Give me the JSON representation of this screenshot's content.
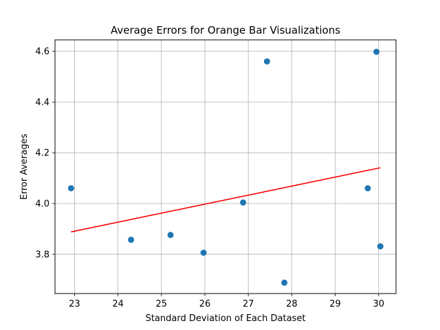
{
  "chart_data": {
    "type": "scatter",
    "title": "Average Errors for Orange Bar Visualizations",
    "xlabel": "Standard Deviation of Each Dataset",
    "ylabel": "Error Averages",
    "xlim": [
      22.55,
      30.4
    ],
    "ylim": [
      3.645,
      4.645
    ],
    "xticks": [
      23,
      24,
      25,
      26,
      27,
      28,
      29,
      30
    ],
    "yticks": [
      3.8,
      4.0,
      4.2,
      4.4,
      4.6
    ],
    "xtick_labels": [
      "23",
      "24",
      "25",
      "26",
      "27",
      "28",
      "29",
      "30"
    ],
    "ytick_labels": [
      "3.8",
      "4.0",
      "4.2",
      "4.4",
      "4.6"
    ],
    "grid": true,
    "points": [
      {
        "x": 22.92,
        "y": 4.06
      },
      {
        "x": 24.3,
        "y": 3.857
      },
      {
        "x": 25.21,
        "y": 3.876
      },
      {
        "x": 25.97,
        "y": 3.806
      },
      {
        "x": 26.88,
        "y": 4.004
      },
      {
        "x": 27.43,
        "y": 4.56
      },
      {
        "x": 27.83,
        "y": 3.688
      },
      {
        "x": 29.75,
        "y": 4.06
      },
      {
        "x": 29.95,
        "y": 4.598
      },
      {
        "x": 30.04,
        "y": 3.831
      }
    ],
    "trend_line": {
      "x": [
        22.92,
        30.04
      ],
      "y": [
        3.888,
        4.141
      ]
    },
    "colors": {
      "points": "#1f77b4",
      "trend": "#ff0000",
      "grid": "#b0b0b0"
    }
  }
}
